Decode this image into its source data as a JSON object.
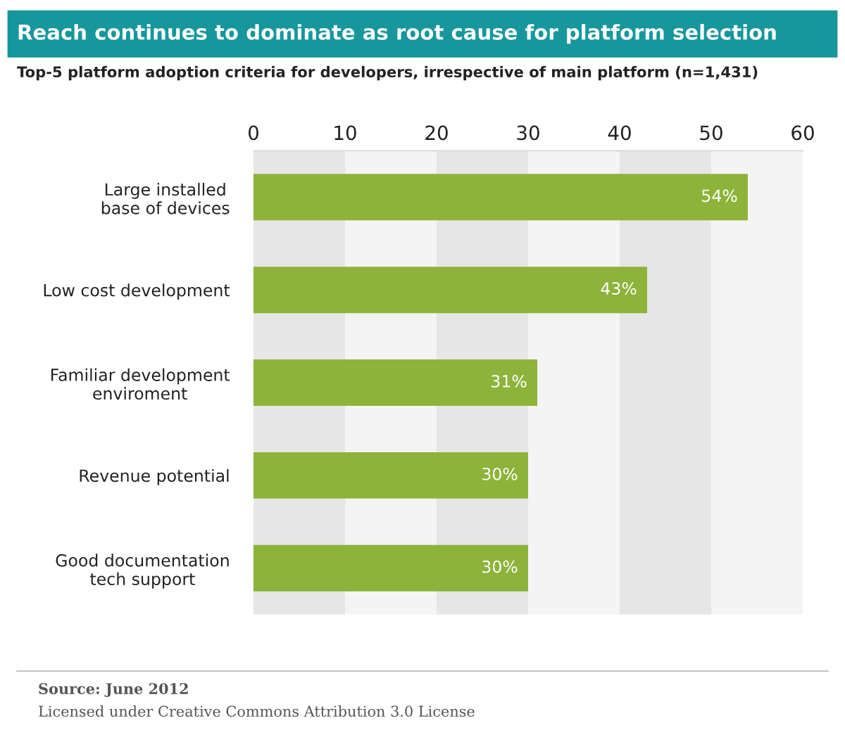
{
  "chart_data": {
    "type": "bar",
    "orientation": "horizontal",
    "title": "Reach continues to dominate as root cause for platform selection",
    "subtitle": "Top-5 platform adoption criteria for developers, irrespective of main platform (n=1,431)",
    "categories": [
      "Large installed\nbase of devices",
      "Low cost development",
      "Familiar development\nenviroment",
      "Revenue potential",
      "Good documentation\ntech support"
    ],
    "values": [
      54,
      43,
      31,
      30,
      30
    ],
    "value_labels": [
      "54%",
      "43%",
      "31%",
      "30%",
      "30%"
    ],
    "color": "#8db33a",
    "xlim": [
      0,
      60
    ],
    "xticks": [
      0,
      10,
      20,
      30,
      40,
      50,
      60
    ],
    "tick_labels": "x",
    "grid": false,
    "bands": [
      {
        "axis": "x",
        "from": 0,
        "to": 10,
        "color": "#e6e6e6"
      },
      {
        "axis": "x",
        "from": 10,
        "to": 20,
        "color": "#f4f4f4"
      },
      {
        "axis": "x",
        "from": 20,
        "to": 30,
        "color": "#e6e6e6"
      },
      {
        "axis": "x",
        "from": 30,
        "to": 40,
        "color": "#f4f4f4"
      },
      {
        "axis": "x",
        "from": 40,
        "to": 50,
        "color": "#e6e6e6"
      },
      {
        "axis": "x",
        "from": 50,
        "to": 60,
        "color": "#f4f4f4"
      }
    ],
    "annotations": [
      "Source: June 2012",
      "Licensed under Creative Commons Attribution 3.0 License"
    ]
  }
}
